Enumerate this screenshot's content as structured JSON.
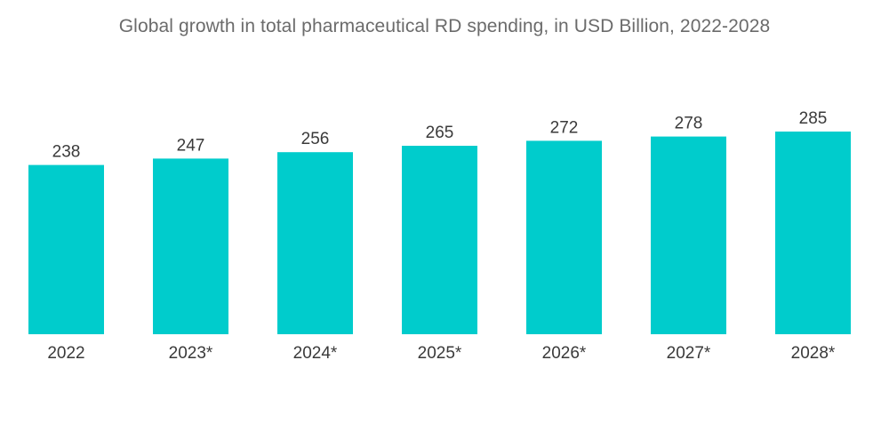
{
  "chart_data": {
    "type": "bar",
    "title": "Global growth in total pharmaceutical RD spending, in USD Billion, 2022-2028",
    "xlabel": "",
    "ylabel": "",
    "categories": [
      "2022",
      "2023*",
      "2024*",
      "2025*",
      "2026*",
      "2027*",
      "2028*"
    ],
    "values": [
      238,
      247,
      256,
      265,
      272,
      278,
      285
    ],
    "ylim": [
      0,
      300
    ],
    "grid": false,
    "legend": "none",
    "bar_color": "#00cccc"
  }
}
